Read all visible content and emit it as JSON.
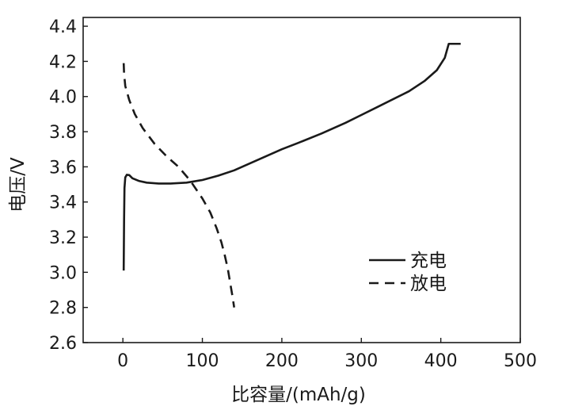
{
  "chart_data": {
    "type": "line",
    "title": "",
    "xlabel": "比容量/(mAh/g)",
    "ylabel": "电压/V",
    "xlim": [
      -50,
      500
    ],
    "ylim": [
      2.6,
      4.45
    ],
    "xticks": [
      0,
      100,
      200,
      300,
      400,
      500
    ],
    "yticks": [
      2.6,
      2.8,
      3.0,
      3.2,
      3.4,
      3.6,
      3.8,
      4.0,
      4.2,
      4.4
    ],
    "xtick_labels": [
      "0",
      "100",
      "200",
      "300",
      "400",
      "500"
    ],
    "ytick_labels": [
      "2.6",
      "2.8",
      "3.0",
      "3.2",
      "3.4",
      "3.6",
      "3.8",
      "4.0",
      "4.2",
      "4.4"
    ],
    "grid": false,
    "legend_position": "bottom-right",
    "series": [
      {
        "name": "充电",
        "style": "solid",
        "color": "#1a1a1a",
        "x": [
          1,
          1.5,
          2,
          3,
          5,
          8,
          12,
          20,
          30,
          45,
          60,
          80,
          100,
          120,
          140,
          160,
          180,
          200,
          220,
          250,
          280,
          300,
          320,
          340,
          360,
          380,
          395,
          405,
          410,
          415,
          425
        ],
        "y": [
          3.01,
          3.3,
          3.48,
          3.54,
          3.555,
          3.553,
          3.535,
          3.52,
          3.51,
          3.505,
          3.505,
          3.51,
          3.525,
          3.55,
          3.58,
          3.62,
          3.66,
          3.7,
          3.735,
          3.79,
          3.85,
          3.895,
          3.94,
          3.985,
          4.03,
          4.09,
          4.15,
          4.22,
          4.3,
          4.3,
          4.3
        ]
      },
      {
        "name": "放电",
        "style": "dashed",
        "color": "#1a1a1a",
        "x": [
          1,
          1.5,
          3,
          8,
          15,
          25,
          40,
          55,
          70,
          85,
          100,
          110,
          118,
          124,
          128,
          132,
          135,
          138,
          140
        ],
        "y": [
          4.19,
          4.13,
          4.06,
          3.98,
          3.9,
          3.82,
          3.73,
          3.66,
          3.6,
          3.52,
          3.42,
          3.34,
          3.25,
          3.17,
          3.1,
          3.02,
          2.94,
          2.86,
          2.8
        ]
      }
    ]
  }
}
